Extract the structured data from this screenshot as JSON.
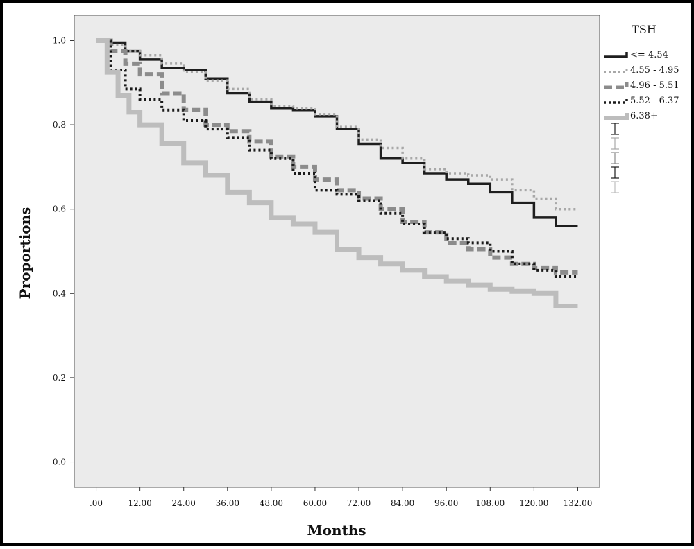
{
  "chart_data": {
    "type": "line",
    "title": "",
    "xlabel": "Months",
    "ylabel": "Proportions",
    "xlim": [
      -6,
      138
    ],
    "ylim": [
      -0.06,
      1.06
    ],
    "x_ticks": [
      0,
      12,
      24,
      36,
      48,
      60,
      72,
      84,
      96,
      108,
      120,
      132
    ],
    "x_tick_labels": [
      ".00",
      "12.00",
      "24.00",
      "36.00",
      "48.00",
      "60.00",
      "72.00",
      "84.00",
      "96.00",
      "108.00",
      "120.00",
      "132.00"
    ],
    "y_ticks": [
      0,
      0.2,
      0.4,
      0.6,
      0.8,
      1.0
    ],
    "y_tick_labels": [
      "0.0",
      "0.2",
      "0.4",
      "0.6",
      "0.8",
      "1.0"
    ],
    "grid": false,
    "background": "#ebebeb",
    "legend": {
      "title": "TSH",
      "placement": "right"
    },
    "series": [
      {
        "name": "<= 4.54",
        "color": "#1e1e1e",
        "dash": "solid",
        "x": [
          0,
          4,
          8,
          12,
          18,
          24,
          30,
          36,
          42,
          48,
          54,
          60,
          66,
          72,
          78,
          84,
          90,
          96,
          102,
          108,
          114,
          120,
          126,
          132
        ],
        "y": [
          1.0,
          0.995,
          0.975,
          0.955,
          0.935,
          0.93,
          0.91,
          0.875,
          0.855,
          0.84,
          0.835,
          0.82,
          0.79,
          0.755,
          0.72,
          0.71,
          0.685,
          0.67,
          0.66,
          0.64,
          0.615,
          0.58,
          0.56,
          0.56
        ]
      },
      {
        "name": "4.55 - 4.95",
        "color": "#a8a8a8",
        "dash": "dotted",
        "x": [
          0,
          4,
          8,
          12,
          18,
          24,
          30,
          36,
          42,
          48,
          54,
          60,
          66,
          72,
          78,
          84,
          90,
          96,
          102,
          108,
          114,
          120,
          126,
          132
        ],
        "y": [
          1.0,
          0.99,
          0.975,
          0.965,
          0.945,
          0.925,
          0.905,
          0.885,
          0.86,
          0.845,
          0.84,
          0.825,
          0.795,
          0.765,
          0.745,
          0.72,
          0.695,
          0.685,
          0.68,
          0.67,
          0.645,
          0.625,
          0.6,
          0.6
        ]
      },
      {
        "name": "4.96 - 5.51",
        "color": "#8c8c8c",
        "dash": "dashed",
        "x": [
          0,
          4,
          8,
          12,
          18,
          24,
          30,
          36,
          42,
          48,
          54,
          60,
          66,
          72,
          78,
          84,
          90,
          96,
          102,
          108,
          114,
          120,
          126,
          132
        ],
        "y": [
          1.0,
          0.975,
          0.945,
          0.92,
          0.875,
          0.835,
          0.8,
          0.785,
          0.76,
          0.725,
          0.7,
          0.67,
          0.645,
          0.625,
          0.6,
          0.57,
          0.545,
          0.52,
          0.505,
          0.485,
          0.47,
          0.46,
          0.45,
          0.45
        ]
      },
      {
        "name": "5.52 - 6.37",
        "color": "#1a1a1a",
        "dash": "dotted",
        "x": [
          0,
          4,
          8,
          12,
          18,
          24,
          30,
          36,
          42,
          48,
          54,
          60,
          66,
          72,
          78,
          84,
          90,
          96,
          102,
          108,
          114,
          120,
          126,
          132
        ],
        "y": [
          1.0,
          0.93,
          0.885,
          0.86,
          0.835,
          0.81,
          0.79,
          0.77,
          0.74,
          0.72,
          0.685,
          0.645,
          0.635,
          0.62,
          0.59,
          0.565,
          0.545,
          0.53,
          0.52,
          0.5,
          0.47,
          0.455,
          0.44,
          0.44
        ]
      },
      {
        "name": "6.38+",
        "color": "#bdbdbd",
        "dash": "solid",
        "x": [
          0,
          3,
          6,
          9,
          12,
          18,
          24,
          30,
          36,
          42,
          48,
          54,
          60,
          66,
          72,
          78,
          84,
          90,
          96,
          102,
          108,
          114,
          120,
          126,
          132
        ],
        "y": [
          1.0,
          0.925,
          0.87,
          0.83,
          0.8,
          0.755,
          0.71,
          0.68,
          0.64,
          0.615,
          0.58,
          0.565,
          0.545,
          0.505,
          0.485,
          0.47,
          0.455,
          0.44,
          0.43,
          0.42,
          0.41,
          0.405,
          0.4,
          0.37,
          0.37
        ]
      }
    ]
  }
}
